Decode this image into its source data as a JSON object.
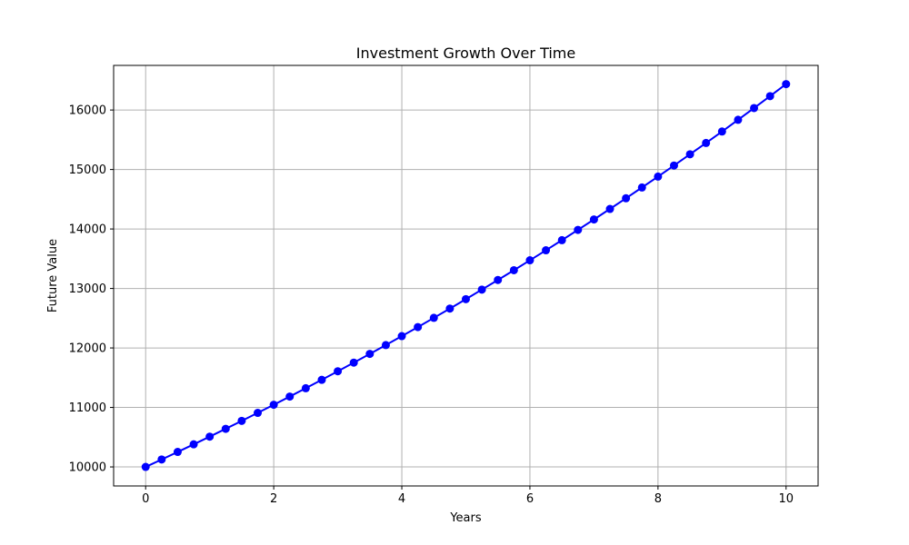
{
  "chart_data": {
    "type": "line",
    "title": "Investment Growth Over Time",
    "xlabel": "Years",
    "ylabel": "Future Value",
    "xlim": [
      -0.5,
      10.5
    ],
    "ylim": [
      9680,
      16750
    ],
    "xticks": [
      0,
      2,
      4,
      6,
      8,
      10
    ],
    "yticks": [
      10000,
      11000,
      12000,
      13000,
      14000,
      15000,
      16000
    ],
    "grid": true,
    "series": [
      {
        "color": "#0000ff",
        "marker": "circle",
        "x": [
          0,
          0.25,
          0.5,
          0.75,
          1,
          1.25,
          1.5,
          1.75,
          2,
          2.25,
          2.5,
          2.75,
          3,
          3.25,
          3.5,
          3.75,
          4,
          4.25,
          4.5,
          4.75,
          5,
          5.25,
          5.5,
          5.75,
          6,
          6.25,
          6.5,
          6.75,
          7,
          7.25,
          7.5,
          7.75,
          8,
          8.25,
          8.5,
          8.75,
          9,
          9.25,
          9.5,
          9.75,
          10
        ],
        "y": [
          10000,
          10125,
          10252,
          10380,
          10509,
          10641,
          10774,
          10909,
          11045,
          11183,
          11323,
          11464,
          11608,
          11753,
          11900,
          12048,
          12199,
          12351,
          12506,
          12662,
          12820,
          12981,
          13143,
          13307,
          13474,
          13642,
          13812,
          13985,
          14160,
          14337,
          14516,
          14698,
          14881,
          15067,
          15256,
          15446,
          15639,
          15835,
          16033,
          16233,
          16436
        ]
      }
    ]
  }
}
